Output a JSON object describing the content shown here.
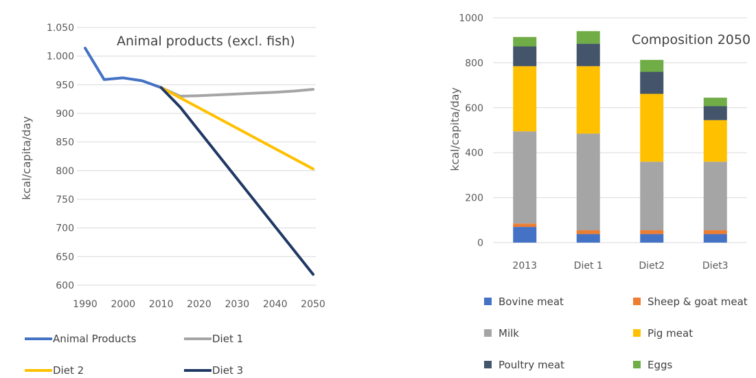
{
  "chart_data": [
    {
      "type": "line",
      "title": "Animal products (excl. fish)",
      "ylabel": "kcal/capita/day",
      "xlabel": "",
      "ylim": [
        600,
        1050
      ],
      "yticks": [
        "600",
        "650",
        "700",
        "750",
        "800",
        "850",
        "900",
        "950",
        "1.000",
        "1.050"
      ],
      "xticks": [
        "1990",
        "2000",
        "2010",
        "2020",
        "2030",
        "2040",
        "2050"
      ],
      "xlim": [
        1990,
        2050
      ],
      "grid": true,
      "legend_position": "bottom",
      "series": [
        {
          "name": "Animal Products",
          "color": "#4472c4",
          "x": [
            1990,
            1995,
            2000,
            2005,
            2010
          ],
          "y": [
            1014,
            959,
            962,
            957,
            945
          ]
        },
        {
          "name": "Diet 1",
          "color": "#a5a5a5",
          "x": [
            2010,
            2015,
            2020,
            2030,
            2040,
            2045,
            2050
          ],
          "y": [
            945,
            930,
            931,
            934,
            937,
            939,
            942
          ]
        },
        {
          "name": "Diet 2",
          "color": "#ffc000",
          "x": [
            2010,
            2050
          ],
          "y": [
            945,
            803
          ]
        },
        {
          "name": "Diet 3",
          "color": "#203864",
          "x": [
            2010,
            2015,
            2050
          ],
          "y": [
            945,
            911,
            619
          ]
        }
      ]
    },
    {
      "type": "bar",
      "stacked": true,
      "title": "Composition 2050",
      "ylabel": "kcal/capita/day",
      "xlabel": "",
      "ylim": [
        0,
        1000
      ],
      "yticks": [
        "0",
        "200",
        "400",
        "600",
        "800",
        "1000"
      ],
      "categories": [
        "2013",
        "Diet 1",
        "Diet2",
        "Diet3"
      ],
      "grid": true,
      "legend_position": "bottom",
      "series": [
        {
          "name": "Bovine meat",
          "color": "#4472c4",
          "values": [
            70,
            38,
            38,
            38
          ]
        },
        {
          "name": "Sheep & goat meat",
          "color": "#ed7d31",
          "values": [
            15,
            17,
            17,
            17
          ]
        },
        {
          "name": "Milk",
          "color": "#a5a5a5",
          "values": [
            410,
            430,
            305,
            305
          ]
        },
        {
          "name": "Pig meat",
          "color": "#ffc000",
          "values": [
            290,
            300,
            302,
            185
          ]
        },
        {
          "name": "Poultry meat",
          "color": "#44546a",
          "values": [
            88,
            100,
            98,
            62
          ]
        },
        {
          "name": "Eggs",
          "color": "#70ad47",
          "values": [
            42,
            56,
            53,
            38
          ]
        }
      ]
    }
  ]
}
